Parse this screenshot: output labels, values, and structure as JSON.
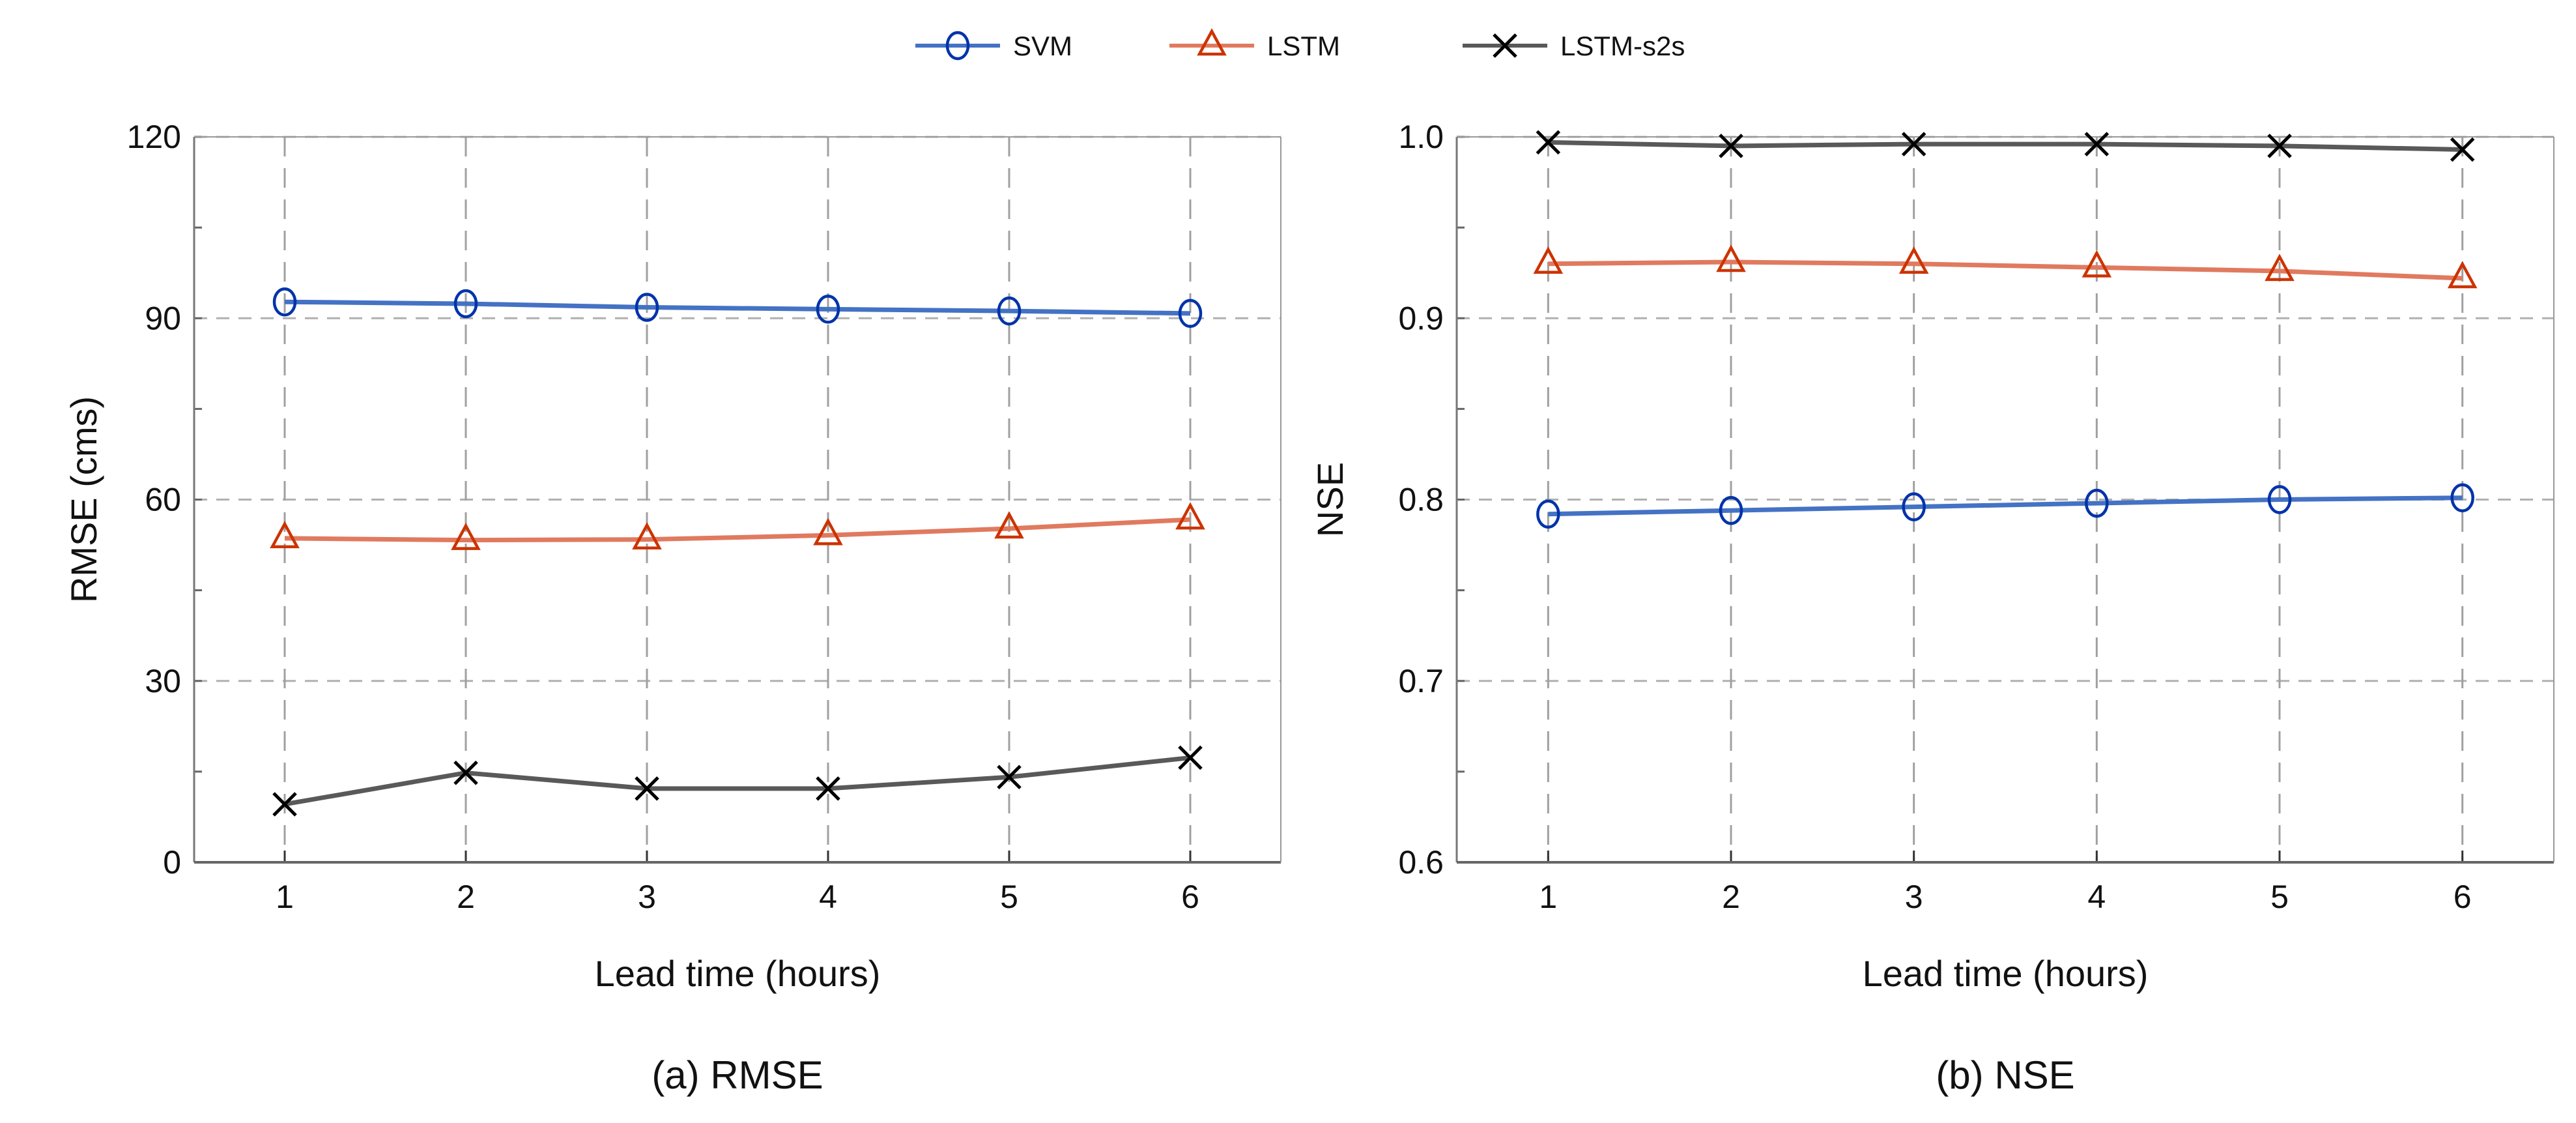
{
  "legend": {
    "entries": [
      {
        "name": "SVM",
        "color": "#4472C4",
        "marker": "circle",
        "marker_color": "#0033AA"
      },
      {
        "name": "LSTM",
        "color": "#E07A5F",
        "marker": "triangle",
        "marker_color": "#CC3300"
      },
      {
        "name": "LSTM-s2s",
        "color": "#595959",
        "marker": "x",
        "marker_color": "#000000"
      }
    ],
    "placement": "top-center"
  },
  "chart_data": [
    {
      "type": "line",
      "title": "(a) RMSE",
      "xlabel": "Lead time (hours)",
      "ylabel": "RMSE (cms)",
      "x": [
        1,
        2,
        3,
        4,
        5,
        6
      ],
      "xlim": [
        0.5,
        6.5
      ],
      "ylim": [
        0,
        120
      ],
      "yticks": [
        0,
        30,
        60,
        90,
        120
      ],
      "ytick_labels": [
        "0",
        "30",
        "60",
        "90",
        "120"
      ],
      "xtick_labels": [
        "1",
        "2",
        "3",
        "4",
        "5",
        "6"
      ],
      "grid": true,
      "series": [
        {
          "name": "SVM",
          "values": [
            92.7,
            92.4,
            91.8,
            91.5,
            91.2,
            90.8
          ]
        },
        {
          "name": "LSTM",
          "values": [
            53.6,
            53.3,
            53.4,
            54.1,
            55.2,
            56.7
          ]
        },
        {
          "name": "LSTM-s2s",
          "values": [
            9.6,
            14.8,
            12.2,
            12.2,
            14.1,
            17.3
          ]
        }
      ]
    },
    {
      "type": "line",
      "title": "(b) NSE",
      "xlabel": "Lead time (hours)",
      "ylabel": "NSE",
      "x": [
        1,
        2,
        3,
        4,
        5,
        6
      ],
      "xlim": [
        0.5,
        6.5
      ],
      "ylim": [
        0.6,
        1.0
      ],
      "yticks": [
        0.6,
        0.7,
        0.8,
        0.9,
        1.0
      ],
      "ytick_labels": [
        "0.6",
        "0.7",
        "0.8",
        "0.9",
        "1.0"
      ],
      "xtick_labels": [
        "1",
        "2",
        "3",
        "4",
        "5",
        "6"
      ],
      "grid": true,
      "series": [
        {
          "name": "SVM",
          "values": [
            0.792,
            0.794,
            0.796,
            0.798,
            0.8,
            0.801
          ]
        },
        {
          "name": "LSTM",
          "values": [
            0.93,
            0.931,
            0.93,
            0.928,
            0.926,
            0.922
          ]
        },
        {
          "name": "LSTM-s2s",
          "values": [
            0.997,
            0.995,
            0.996,
            0.996,
            0.995,
            0.993
          ]
        }
      ]
    }
  ]
}
